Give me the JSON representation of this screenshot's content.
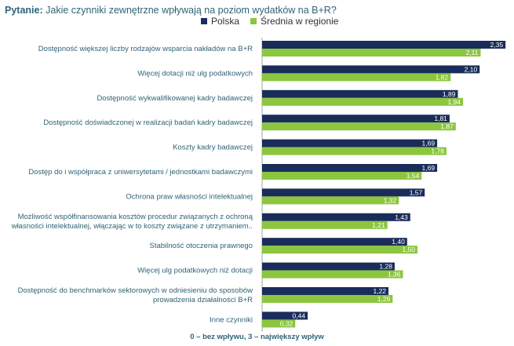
{
  "question": {
    "prefix": "Pytanie:",
    "text": "Jakie czynniki zewnętrzne wpływają na poziom wydatków na B+R?"
  },
  "footer": "0 – bez wpływu, 3 – największy wpływ",
  "colors": {
    "polska": "#1a2d5a",
    "srednia": "#8cc63f",
    "label": "#2f6276"
  },
  "chart_data": {
    "type": "bar",
    "orientation": "horizontal",
    "title": "Pytanie: Jakie czynniki zewnętrzne wpływają na poziom wydatków na B+R?",
    "xlabel": "0 – bez wpływu, 3 – największy wpływ",
    "xlim": [
      0,
      3
    ],
    "legend_position": "top",
    "categories": [
      [
        "Dostępność większej liczby rodzajów wsparcia nakładów na B+R"
      ],
      [
        "Więcej dotacji niż ulg podatkowych"
      ],
      [
        "Dostępność wykwalifikowanej kadry badawczej"
      ],
      [
        "Dostępność doświadczonej w realizacji badań kadry badawczej"
      ],
      [
        "Koszty kadry badawczej"
      ],
      [
        "Dostęp do i współpraca z uniwersytetami / jednostkami badawczymi"
      ],
      [
        "Ochrona praw własności intelektualnej"
      ],
      [
        "Możliwość współfinansowania kosztów procedur związanych z ochroną",
        "własności intelektualnej, włączając w to koszty związane z utrzymaniem.."
      ],
      [
        "Stabilność otoczenia prawnego"
      ],
      [
        "Więcej ulg podatkowych niż dotacji"
      ],
      [
        "Dostępność do benchmarków sektorowych w odniesieniu do sposobów",
        "prowadzenia działalności B+R"
      ],
      [
        "Inne czynniki"
      ]
    ],
    "series": [
      {
        "name": "Polska",
        "color": "#1a2d5a",
        "values": [
          2.35,
          2.1,
          1.89,
          1.81,
          1.69,
          1.69,
          1.57,
          1.43,
          1.4,
          1.28,
          1.22,
          0.44
        ]
      },
      {
        "name": "Średnia w regionie",
        "color": "#8cc63f",
        "values": [
          2.11,
          1.82,
          1.94,
          1.87,
          1.78,
          1.54,
          1.32,
          1.21,
          1.5,
          1.36,
          1.26,
          0.32
        ]
      }
    ]
  }
}
